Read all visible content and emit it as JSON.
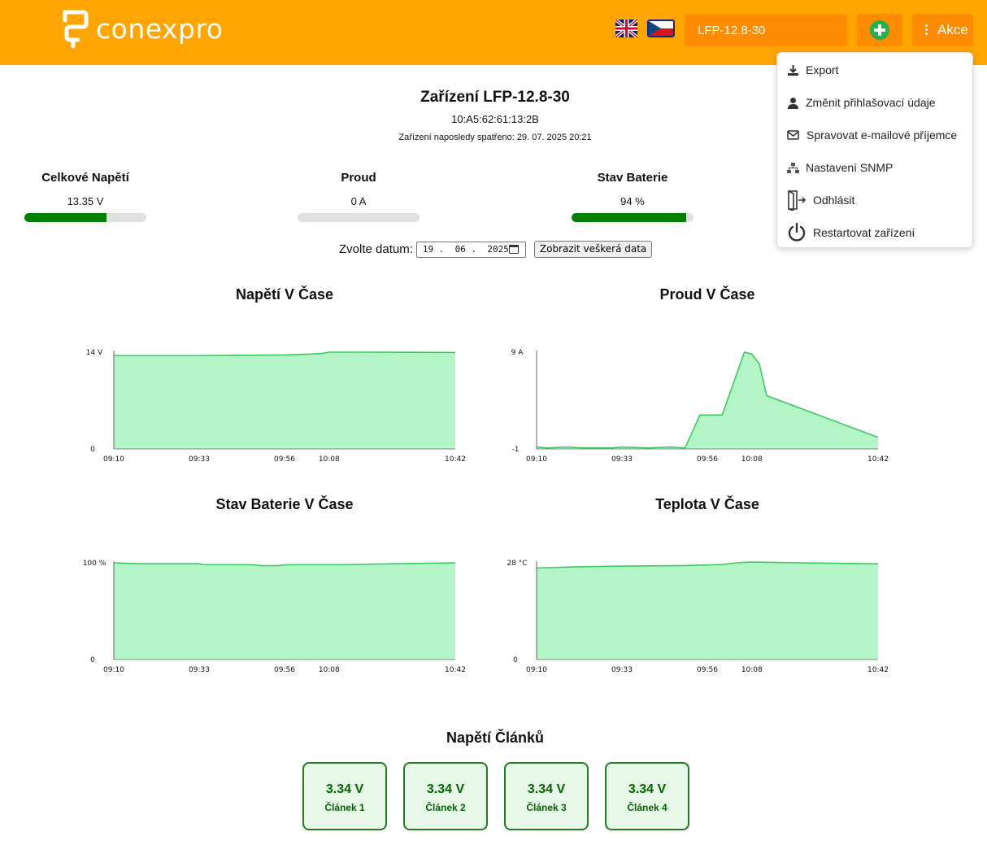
{
  "header": {
    "brand": "conexpro",
    "languages": [
      {
        "code": "en",
        "icon": "uk-flag-icon"
      },
      {
        "code": "cs",
        "icon": "cz-flag-icon"
      }
    ],
    "device_select_value": "LFP-12.8-30",
    "add_icon": "plus-circle-icon",
    "actions_label": "Akce",
    "colors": {
      "header_bg": "#FFA500",
      "button_bg": "#FF8C00",
      "add_green": "#22b14c"
    }
  },
  "actions_menu": [
    {
      "label": "Export",
      "icon": "download-icon"
    },
    {
      "label": "Změnit přihlašovací údaje",
      "icon": "user-icon"
    },
    {
      "label": "Spravovat e-mailové příjemce",
      "icon": "mail-icon"
    },
    {
      "label": "Nastavení SNMP",
      "icon": "network-icon"
    },
    {
      "label": "Odhlásit",
      "icon": "logout-icon"
    },
    {
      "label": "Restartovat zařízení",
      "icon": "power-icon"
    }
  ],
  "device": {
    "title": "Zařízení LFP-12.8-30",
    "mac": "10:A5:62:61:13:2B",
    "last_seen": "Zařízení naposledy spatřeno: 29. 07. 2025 20:21"
  },
  "metrics": [
    {
      "label": "Celkové Napětí",
      "value": "13.35 V",
      "fill_fraction": 0.67
    },
    {
      "label": "Proud",
      "value": "0 A",
      "fill_fraction": 0
    },
    {
      "label": "Stav Baterie",
      "value": "94 %",
      "fill_fraction": 0.94
    }
  ],
  "date_filter": {
    "label": "Zvolte datum:",
    "value": "19 .  06 .  2025",
    "show_all_label": "Zobrazit veškerá data"
  },
  "chart_data": [
    {
      "type": "area",
      "title": "Napětí V Čase",
      "x_ticks": [
        "09:10",
        "09:33",
        "09:56",
        "10:08",
        "10:42"
      ],
      "x": [
        0,
        23,
        46,
        52,
        56,
        58,
        61,
        65,
        70,
        92
      ],
      "y": [
        13.5,
        13.5,
        13.6,
        13.7,
        13.8,
        14.0,
        14.0,
        14.0,
        14.0,
        13.95
      ],
      "y_tick_labels": [
        "0",
        "14 V"
      ],
      "ylim": [
        0,
        14
      ],
      "color": "#3cc862",
      "fill": "#b4f5c8"
    },
    {
      "type": "area",
      "title": "Proud V Čase",
      "x_ticks": [
        "09:10",
        "09:33",
        "09:56",
        "10:08",
        "10:42"
      ],
      "x": [
        0,
        3,
        8,
        13,
        20,
        23,
        30,
        36,
        40,
        44,
        46,
        50,
        56,
        58,
        60,
        62,
        92
      ],
      "y": [
        -0.8,
        -0.9,
        -0.8,
        -0.9,
        -0.9,
        -0.8,
        -0.9,
        -0.8,
        -0.9,
        2.5,
        2.5,
        2.5,
        9.0,
        8.8,
        7.8,
        4.5,
        0.2
      ],
      "y_tick_labels": [
        "-1",
        "9 A"
      ],
      "ylim": [
        -1,
        9
      ],
      "color": "#3cc862",
      "fill": "#b4f5c8"
    },
    {
      "type": "area",
      "title": "Stav Baterie V Čase",
      "x_ticks": [
        "09:10",
        "09:33",
        "09:56",
        "10:08",
        "10:42"
      ],
      "x": [
        0,
        7,
        23,
        24,
        37,
        40,
        44,
        47,
        60,
        92
      ],
      "y": [
        100,
        99,
        99,
        98,
        98,
        97,
        97,
        98,
        98,
        100
      ],
      "y_tick_labels": [
        "0",
        "100 %"
      ],
      "ylim": [
        0,
        100
      ],
      "color": "#3cc862",
      "fill": "#b4f5c8"
    },
    {
      "type": "area",
      "title": "Teplota V Čase",
      "x_ticks": [
        "09:10",
        "09:33",
        "09:56",
        "10:08",
        "10:42"
      ],
      "x": [
        0,
        10,
        20,
        30,
        40,
        50,
        54,
        57,
        60,
        70,
        92
      ],
      "y": [
        26.5,
        26.8,
        27.0,
        27.1,
        27.2,
        27.5,
        28.0,
        28.2,
        28.2,
        28.0,
        27.7
      ],
      "y_tick_labels": [
        "0",
        "28 °C"
      ],
      "ylim": [
        0,
        28
      ],
      "color": "#3cc862",
      "fill": "#b4f5c8"
    }
  ],
  "cells": {
    "title": "Napětí Článků",
    "items": [
      {
        "voltage": "3.34 V",
        "name": "Článek 1"
      },
      {
        "voltage": "3.34 V",
        "name": "Článek 2"
      },
      {
        "voltage": "3.34 V",
        "name": "Článek 3"
      },
      {
        "voltage": "3.34 V",
        "name": "Článek 4"
      }
    ]
  }
}
